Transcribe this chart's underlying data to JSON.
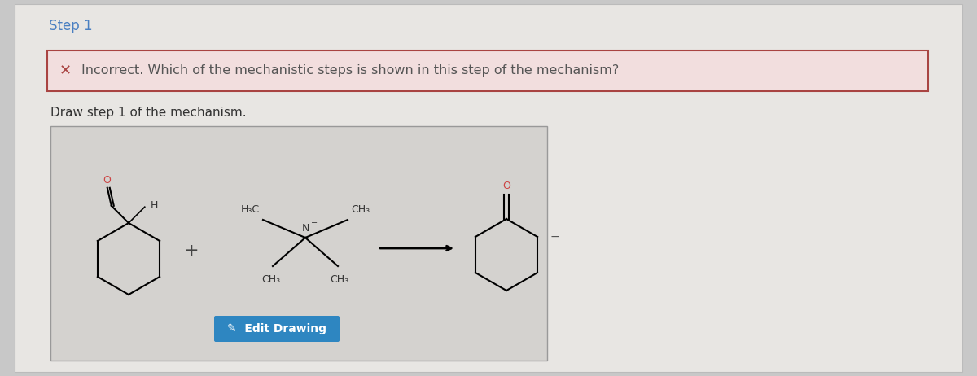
{
  "bg_outer": "#c8c8c8",
  "bg_page": "#e8e6e3",
  "step_title": "Step 1",
  "step_title_color": "#4a7fc1",
  "step_title_fontsize": 12,
  "error_box_bg": "#f2dede",
  "error_box_border": "#a94442",
  "error_icon": "x",
  "error_icon_color": "#a94442",
  "error_text": "Incorrect. Which of the mechanistic steps is shown in this step of the mechanism?",
  "error_text_color": "#555555",
  "error_fontsize": 11.5,
  "draw_label": "Draw step 1 of the mechanism.",
  "draw_label_color": "#333333",
  "draw_label_fontsize": 11,
  "inner_box_bg": "#d4d2cf",
  "inner_box_border": "#aaaaaa",
  "edit_btn_bg": "#2e86c1",
  "edit_btn_text": "  Edit Drawing",
  "edit_btn_color": "#ffffff",
  "edit_btn_fontsize": 10
}
